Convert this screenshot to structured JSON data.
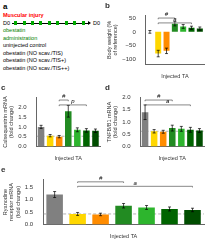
{
  "chart_data": [
    {
      "type": "diagram",
      "title": "a",
      "annotations": [
        {
          "text": "Muscular injury",
          "color": "red"
        },
        {
          "text": [
            "D0",
            "D0"
          ]
        },
        {
          "text": "obestatin",
          "color": "green"
        },
        {
          "text": "administration",
          "color": "green"
        },
        {
          "text": "uninjected control"
        },
        {
          "text": "obestatin (NO scav./TIS)"
        },
        {
          "text": "obestatin (NO scav./TIS+)"
        },
        {
          "text": "obestatin (NO scav./TIS++)"
        }
      ]
    },
    {
      "type": "bar",
      "title": "b",
      "ylabel": "Body weight (% of reference)",
      "xlabel": "Injected TA",
      "categories": [
        null,
        null,
        null,
        null,
        null,
        null,
        null
      ],
      "values": [
        0,
        -80,
        -70,
        30,
        20,
        15,
        12
      ],
      "colors": [
        "#808080",
        "#ffd700",
        "#ff8c00",
        "#228b22",
        "#2db52d",
        "#006400",
        "#004d00"
      ],
      "errors": [
        5,
        12,
        10,
        8,
        7,
        6,
        6
      ],
      "ylim": [
        -120,
        60
      ],
      "yticks": [
        {
          "value": -100,
          "label": "−100"
        },
        {
          "value": -50,
          "label": "−50"
        },
        0,
        50
      ],
      "annotations": [
        {
          "text": "#",
          "between": [
            1,
            3
          ]
        },
        {
          "text": "a",
          "between": [
            1,
            5
          ]
        }
      ],
      "grid": false,
      "tick_labels": "y"
    },
    {
      "type": "bar",
      "title": "c",
      "ylabel": "Calsequestrin mRNA\n(fold change)",
      "xlabel": "Injected TA",
      "categories": [
        null,
        null,
        null,
        null,
        null,
        null,
        null
      ],
      "values": [
        1.0,
        0.55,
        0.5,
        1.8,
        0.85,
        0.82,
        0.8
      ],
      "colors": [
        "#808080",
        "#ffd700",
        "#ff8c00",
        "#228b22",
        "#2db52d",
        "#006400",
        "#004d00"
      ],
      "errors": [
        0.08,
        0.06,
        0.06,
        0.3,
        0.1,
        0.09,
        0.09
      ],
      "ylim": [
        0,
        2.5
      ],
      "yticks": [
        {
          "value": 0,
          "label": "0.0"
        },
        {
          "value": 0.5,
          "label": "0.5"
        },
        {
          "value": 1.0,
          "label": "1.0"
        },
        {
          "value": 1.5,
          "label": "1.5"
        },
        {
          "value": 2.0,
          "label": "2.0"
        }
      ],
      "reference_y": 0.52,
      "annotations": [
        {
          "text": "#",
          "between": [
            2,
            3
          ]
        },
        {
          "text": "p",
          "between": [
            2,
            5
          ]
        }
      ],
      "grid": false,
      "tick_labels": "y"
    },
    {
      "type": "bar",
      "title": "d",
      "ylabel": "TNFB/B1 mRNA\n(fold change)",
      "xlabel": "Injected TA",
      "categories": [
        null,
        null,
        null,
        null,
        null,
        null,
        null
      ],
      "values": [
        1.4,
        0.62,
        0.6,
        0.75,
        0.72,
        0.68,
        0.65
      ],
      "colors": [
        "#808080",
        "#ffd700",
        "#ff8c00",
        "#228b22",
        "#2db52d",
        "#006400",
        "#004d00"
      ],
      "errors": [
        0.3,
        0.07,
        0.06,
        0.12,
        0.1,
        0.1,
        0.08
      ],
      "ylim": [
        0,
        2.0
      ],
      "yticks": [
        {
          "value": 0,
          "label": "0.0"
        },
        {
          "value": 0.5,
          "label": "0.5"
        },
        {
          "value": 1.0,
          "label": "1.0"
        },
        {
          "value": 1.5,
          "label": "1.5"
        },
        {
          "value": 2.0,
          "label": "2.0"
        }
      ],
      "reference_y": 0.62,
      "annotations": [
        {
          "text": "#",
          "between": [
            0,
            3
          ]
        },
        {
          "text": "a",
          "between": [
            0,
            5
          ]
        }
      ],
      "grid": false,
      "tick_labels": "y"
    },
    {
      "type": "bar",
      "title": "e",
      "ylabel": "Ryanodine receptor mRNA\n(fold change)",
      "xlabel": "Injected TA",
      "categories": [
        null,
        null,
        null,
        null,
        null,
        null,
        null
      ],
      "values": [
        1.2,
        0.42,
        0.4,
        0.75,
        0.68,
        0.62,
        0.58
      ],
      "colors": [
        "#808080",
        "#ffd700",
        "#ff8c00",
        "#228b22",
        "#2db52d",
        "#006400",
        "#004d00"
      ],
      "errors": [
        0.12,
        0.06,
        0.05,
        0.09,
        0.08,
        0.08,
        0.07
      ],
      "ylim": [
        0,
        1.8
      ],
      "yticks": [
        {
          "value": 0,
          "label": "0.0"
        },
        {
          "value": 0.5,
          "label": "0.5"
        },
        {
          "value": 1.0,
          "label": "1.0"
        },
        {
          "value": 1.5,
          "label": "1.5"
        }
      ],
      "reference_y": 0.42,
      "annotations": [
        {
          "text": "#",
          "between": [
            1,
            3
          ]
        },
        {
          "text": "a",
          "between": [
            1,
            6
          ]
        }
      ],
      "grid": false,
      "tick_labels": "y"
    }
  ]
}
